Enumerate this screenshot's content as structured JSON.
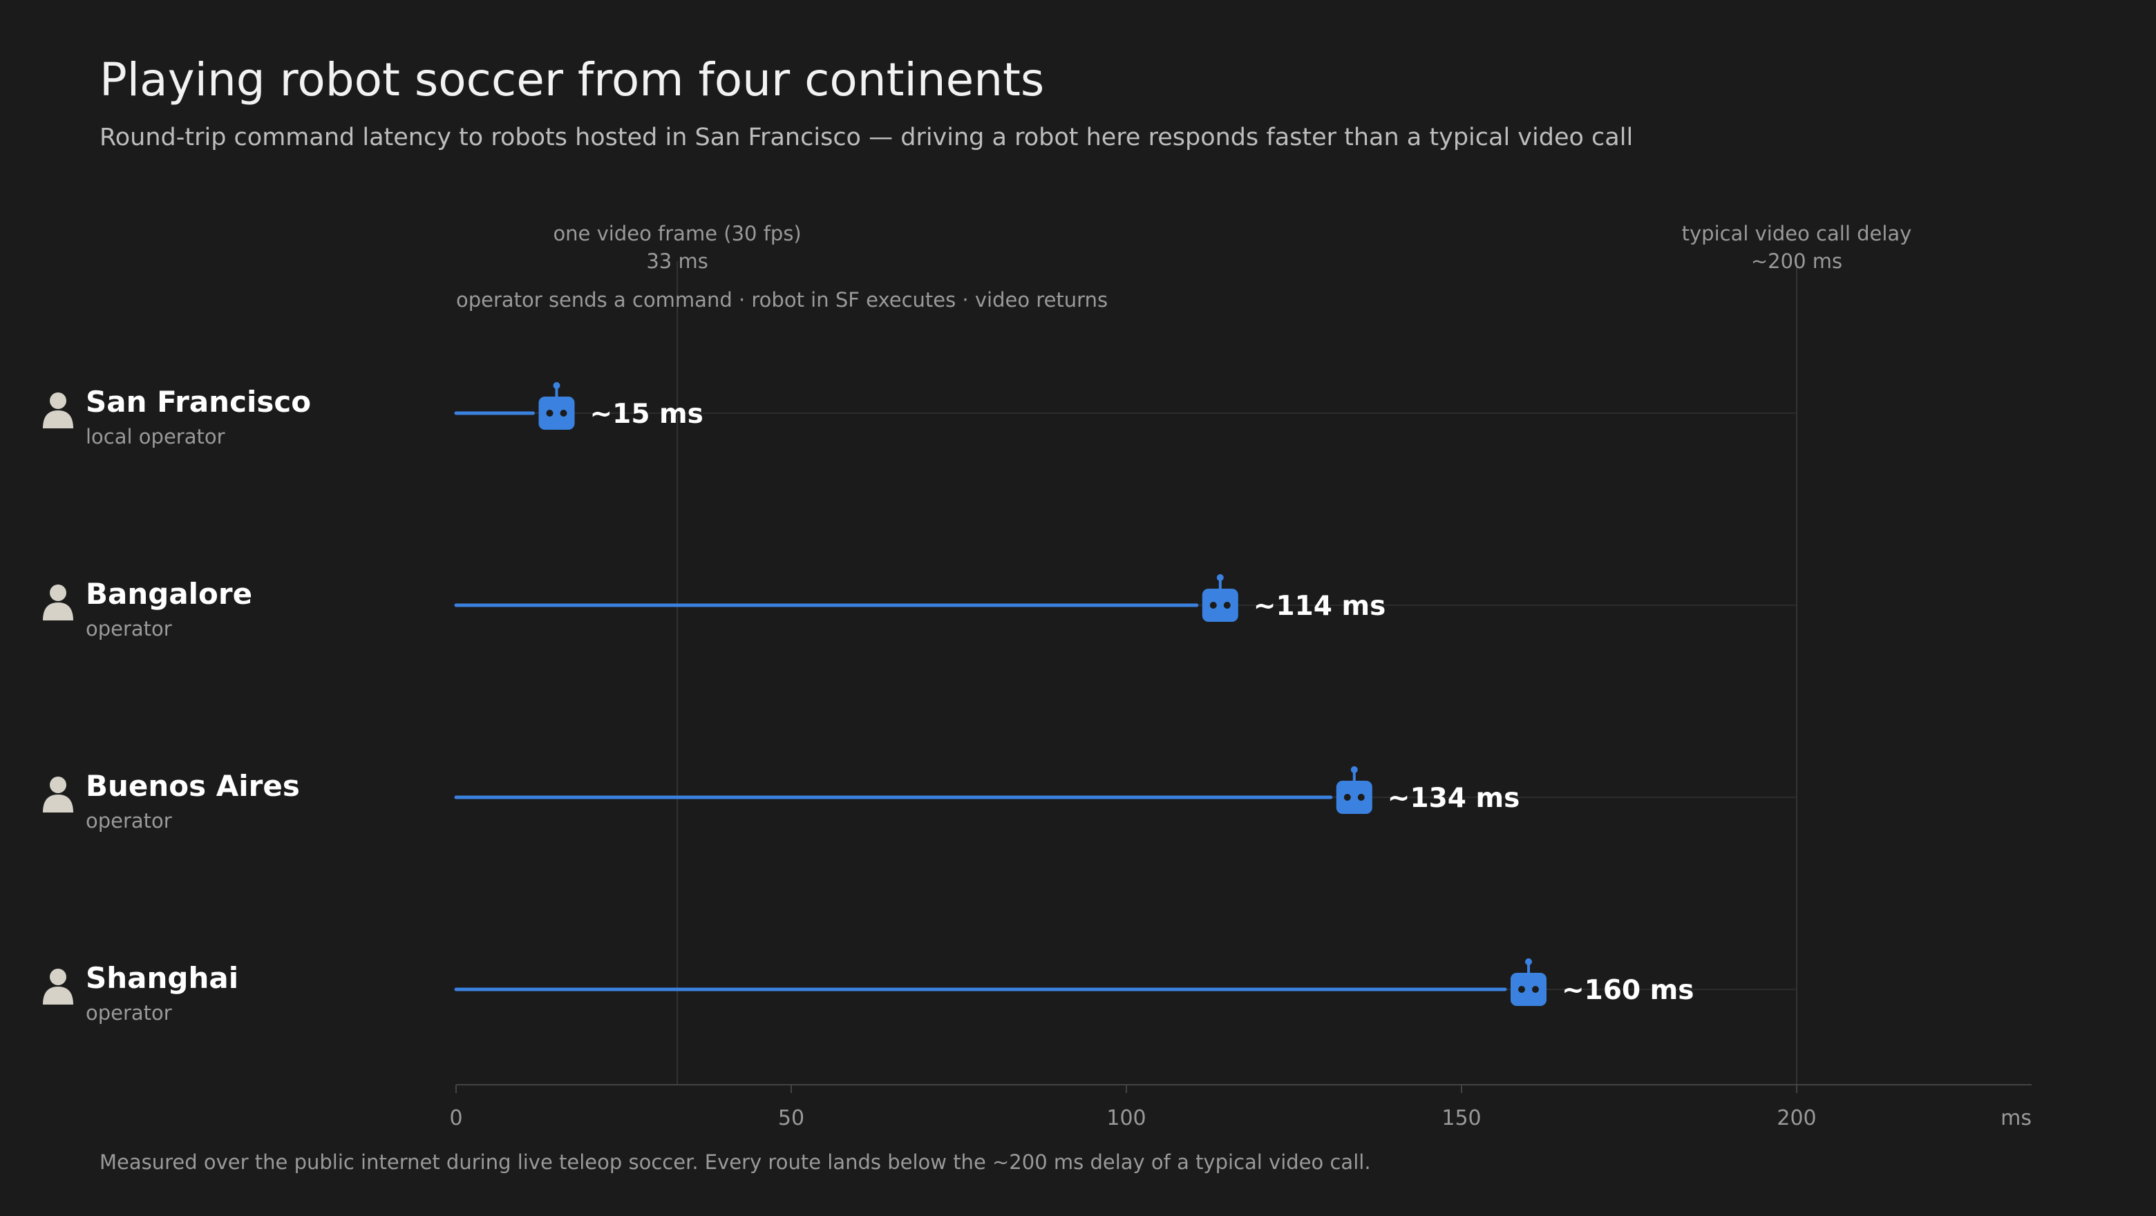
{
  "colors": {
    "background": "#1b1b1b",
    "accent": "#3b82e0",
    "title": "#f2f2f2",
    "muted": "#9a9a9a",
    "grid": "#333333",
    "person": "#d6d2c8"
  },
  "chart_data": {
    "type": "bar",
    "style": "lollipop",
    "title": "Playing robot soccer from four continents",
    "subtitle": "Round-trip command latency to robots hosted in San Francisco — driving a robot here responds faster than a typical video call",
    "direction_note": "operator sends a command · robot in SF executes · video returns",
    "footnote": "Measured over the public internet during live teleop soccer. Every route lands below the ~200 ms delay of a typical video call.",
    "xlabel": "ms",
    "xlim": [
      0,
      235
    ],
    "xticks": [
      0,
      50,
      100,
      150,
      200
    ],
    "grid": false,
    "categories": [
      "San Francisco",
      "Bangalore",
      "Buenos Aires",
      "Shanghai"
    ],
    "sublabels": [
      "local operator",
      "operator",
      "operator",
      "operator"
    ],
    "values": [
      15,
      114,
      134,
      160
    ],
    "value_labels": [
      "~15 ms",
      "~114 ms",
      "~134 ms",
      "~160 ms"
    ],
    "reference_lines": [
      {
        "value": 33,
        "label": "one video frame (30 fps)",
        "value_label": "33 ms"
      },
      {
        "value": 200,
        "label": "typical video call delay",
        "value_label": "~200 ms"
      }
    ],
    "marker_icon": "robot-icon",
    "row_icon": "person-icon"
  }
}
